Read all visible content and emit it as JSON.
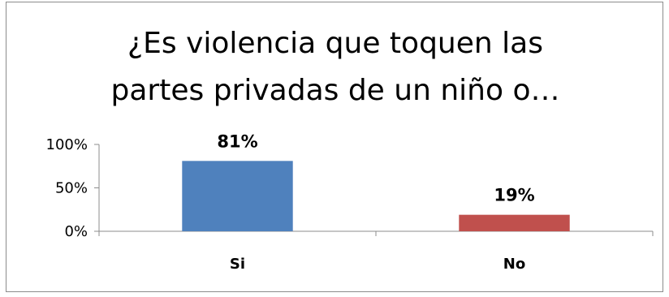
{
  "chart_data": {
    "type": "bar",
    "title_lines": [
      "¿Es violencia que toquen las",
      "partes privadas de un niño o…"
    ],
    "categories": [
      "Si",
      "No"
    ],
    "values": [
      81,
      19
    ],
    "data_labels": [
      "81%",
      "19%"
    ],
    "ylim": [
      0,
      100
    ],
    "yticks": [
      {
        "value": 0,
        "label": "0%"
      },
      {
        "value": 50,
        "label": "50%"
      },
      {
        "value": 100,
        "label": "100%"
      }
    ],
    "colors": [
      "#4f81bd",
      "#c0504d"
    ],
    "grid": false,
    "legend": "none"
  }
}
